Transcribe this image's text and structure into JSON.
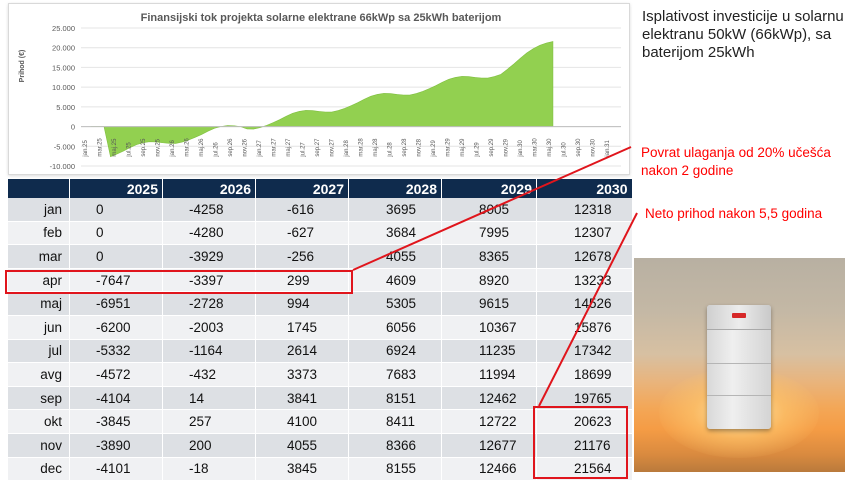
{
  "chart_data": {
    "type": "area",
    "title": "Finansijski tok projekta solarne elektrane 66kWp sa 25kWh baterijom",
    "ylabel": "Prihod (€)",
    "xlabel": "",
    "ylim": [
      -10000,
      25000
    ],
    "yticks": [
      "25.000",
      "20.000",
      "15.000",
      "10.000",
      "5.000",
      "0",
      "-5.000",
      "-10.000"
    ],
    "ytick_values": [
      25000,
      20000,
      15000,
      10000,
      5000,
      0,
      -5000,
      -10000
    ],
    "x_tick_labels": [
      "jan.25",
      "mar.25",
      "maj.25",
      "jul.25",
      "sep.25",
      "nov.25",
      "jan.26",
      "mar.26",
      "maj.26",
      "jul.26",
      "sep.26",
      "nov.26",
      "jan.27",
      "mar.27",
      "maj.27",
      "jul.27",
      "sep.27",
      "nov.27",
      "jan.28",
      "mar.28",
      "maj.28",
      "jul.28",
      "sep.28",
      "nov.28",
      "jan.29",
      "mar.29",
      "maj.29",
      "jul.29",
      "sep.29",
      "nov.29",
      "jan.30",
      "mar.30",
      "maj.30",
      "jul.30",
      "sep.30",
      "nov.30",
      "jan.31"
    ],
    "fill_color": "#92d050",
    "grid": true,
    "months": [
      "jan",
      "feb",
      "mar",
      "apr",
      "maj",
      "jun",
      "jul",
      "avg",
      "sep",
      "okt",
      "nov",
      "dec"
    ],
    "series": [
      {
        "name": "2025",
        "values": [
          0,
          0,
          0,
          -7647,
          -6951,
          -6200,
          -5332,
          -4572,
          -4104,
          -3845,
          -3890,
          -4101
        ]
      },
      {
        "name": "2026",
        "values": [
          -4258,
          -4280,
          -3929,
          -3397,
          -2728,
          -2003,
          -1164,
          -432,
          14,
          257,
          200,
          -18
        ]
      },
      {
        "name": "2027",
        "values": [
          -616,
          -627,
          -256,
          299,
          994,
          1745,
          2614,
          3373,
          3841,
          4100,
          4055,
          3845
        ]
      },
      {
        "name": "2028",
        "values": [
          3695,
          3684,
          4055,
          4609,
          5305,
          6056,
          6924,
          7683,
          8151,
          8411,
          8366,
          8155
        ]
      },
      {
        "name": "2029",
        "values": [
          8005,
          7995,
          8365,
          8920,
          9615,
          10367,
          11235,
          11994,
          12462,
          12722,
          12677,
          12466
        ]
      },
      {
        "name": "2030",
        "values": [
          12318,
          12307,
          12678,
          13233,
          14526,
          15876,
          17342,
          18699,
          19765,
          20623,
          21176,
          21564
        ]
      }
    ]
  },
  "table": {
    "columns": [
      "2025",
      "2026",
      "2027",
      "2028",
      "2029",
      "2030"
    ],
    "rows": [
      {
        "month": "jan",
        "values": [
          "0",
          "-4258",
          "-616",
          "3695",
          "8005",
          "12318"
        ]
      },
      {
        "month": "feb",
        "values": [
          "0",
          "-4280",
          "-627",
          "3684",
          "7995",
          "12307"
        ]
      },
      {
        "month": "mar",
        "values": [
          "0",
          "-3929",
          "-256",
          "4055",
          "8365",
          "12678"
        ]
      },
      {
        "month": "apr",
        "values": [
          "-7647",
          "-3397",
          "299",
          "4609",
          "8920",
          "13233"
        ]
      },
      {
        "month": "maj",
        "values": [
          "-6951",
          "-2728",
          "994",
          "5305",
          "9615",
          "14526"
        ]
      },
      {
        "month": "jun",
        "values": [
          "-6200",
          "-2003",
          "1745",
          "6056",
          "10367",
          "15876"
        ]
      },
      {
        "month": "jul",
        "values": [
          "-5332",
          "-1164",
          "2614",
          "6924",
          "11235",
          "17342"
        ]
      },
      {
        "month": "avg",
        "values": [
          "-4572",
          "-432",
          "3373",
          "7683",
          "11994",
          "18699"
        ]
      },
      {
        "month": "sep",
        "values": [
          "-4104",
          "14",
          "3841",
          "8151",
          "12462",
          "19765"
        ]
      },
      {
        "month": "okt",
        "values": [
          "-3845",
          "257",
          "4100",
          "8411",
          "12722",
          "20623"
        ]
      },
      {
        "month": "nov",
        "values": [
          "-3890",
          "200",
          "4055",
          "8366",
          "12677",
          "21176"
        ]
      },
      {
        "month": "dec",
        "values": [
          "-4101",
          "-18",
          "3845",
          "8155",
          "12466",
          "21564"
        ]
      }
    ]
  },
  "side_title": "Isplativost investicije u solarnu elektranu 50kW (66kWp), sa baterijom 25kWh",
  "annotations": {
    "payback": "Povrat ulaganja od 20% učešća nakon 2 godine",
    "net_income": "Neto prihod nakon 5,5 godina"
  },
  "colors": {
    "header": "#0f2b4d",
    "row_dark": "#dde0e4",
    "row_light": "#f0f1f3",
    "highlight": "#e0151c",
    "area": "#92d050"
  },
  "icons": [
    "battery-photo"
  ]
}
